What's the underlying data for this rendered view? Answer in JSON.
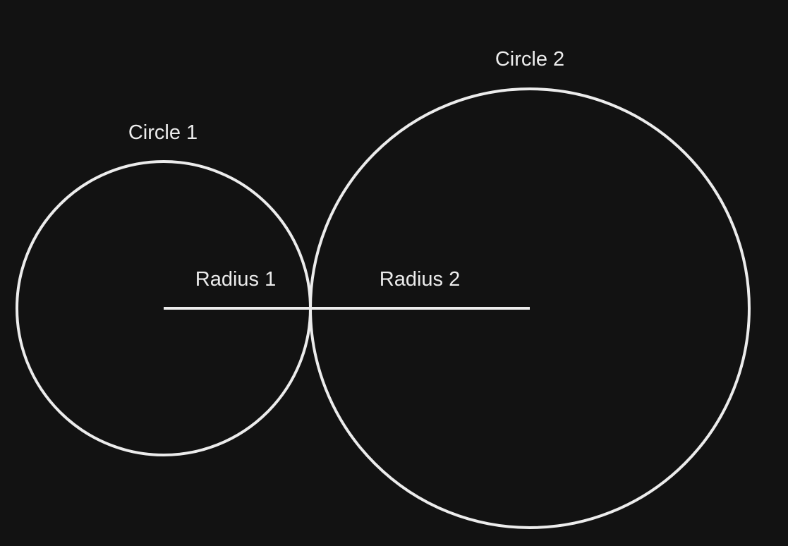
{
  "labels": {
    "circle1": "Circle 1",
    "circle2": "Circle 2",
    "radius1": "Radius 1",
    "radius2": "Radius 2"
  },
  "colors": {
    "background": "#121212",
    "stroke": "#ececec"
  }
}
